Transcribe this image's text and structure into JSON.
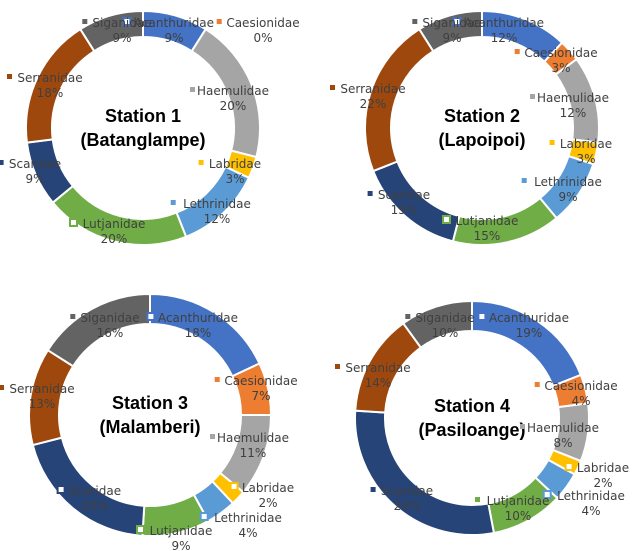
{
  "colors": {
    "Acanthuridae": "#4472C4",
    "Caesionidae": "#ED7D31",
    "Haemulidae": "#A5A5A5",
    "Labridae": "#FFC000",
    "Lethrinidae": "#5B9BD5",
    "Lutjanidae": "#70AD47",
    "Scaridae": "#264478",
    "Serranidae": "#9E480E",
    "Siganidae": "#636363"
  },
  "chart_data": [
    {
      "type": "pie",
      "donut": true,
      "center_title": [
        "Station 1",
        "(Batanglampe)"
      ],
      "categories": [
        "Acanthuridae",
        "Caesionidae",
        "Haemulidae",
        "Labridae",
        "Lethrinidae",
        "Lutjanidae",
        "Scaridae",
        "Serranidae",
        "Siganidae"
      ],
      "values": [
        9,
        0,
        20,
        3,
        12,
        20,
        9,
        18,
        9
      ],
      "data_labels": [
        "9%",
        "0%",
        "20%",
        "3%",
        "12%",
        "20%",
        "9%",
        "18%",
        "9%"
      ]
    },
    {
      "type": "pie",
      "donut": true,
      "center_title": [
        "Station 2",
        "(Lapoipoi)"
      ],
      "categories": [
        "Acanthuridae",
        "Caesionidae",
        "Haemulidae",
        "Labridae",
        "Lethrinidae",
        "Lutjanidae",
        "Scaridae",
        "Serranidae",
        "Siganidae"
      ],
      "values": [
        12,
        3,
        12,
        3,
        9,
        15,
        15,
        22,
        9
      ],
      "data_labels": [
        "12%",
        "3%",
        "12%",
        "3%",
        "9%",
        "15%",
        "15%",
        "22%",
        "9%"
      ]
    },
    {
      "type": "pie",
      "donut": true,
      "center_title": [
        "Station 3",
        "(Malamberi)"
      ],
      "categories": [
        "Acanthuridae",
        "Caesionidae",
        "Haemulidae",
        "Labridae",
        "Lethrinidae",
        "Lutjanidae",
        "Scaridae",
        "Serranidae",
        "Siganidae"
      ],
      "values": [
        18,
        7,
        11,
        2,
        4,
        9,
        20,
        13,
        16
      ],
      "data_labels": [
        "18%",
        "7%",
        "11%",
        "2%",
        "4%",
        "9%",
        "20%",
        "13%",
        "16%"
      ]
    },
    {
      "type": "pie",
      "donut": true,
      "center_title": [
        "Station 4",
        "(Pasiloange)"
      ],
      "categories": [
        "Acanthuridae",
        "Caesionidae",
        "Haemulidae",
        "Labridae",
        "Lethrinidae",
        "Lutjanidae",
        "Scaridae",
        "Serranidae",
        "Siganidae"
      ],
      "values": [
        19,
        4,
        8,
        2,
        4,
        10,
        29,
        14,
        10
      ],
      "data_labels": [
        "19%",
        "4%",
        "8%",
        "2%",
        "4%",
        "10%",
        "29%",
        "14%",
        "10%"
      ]
    }
  ]
}
